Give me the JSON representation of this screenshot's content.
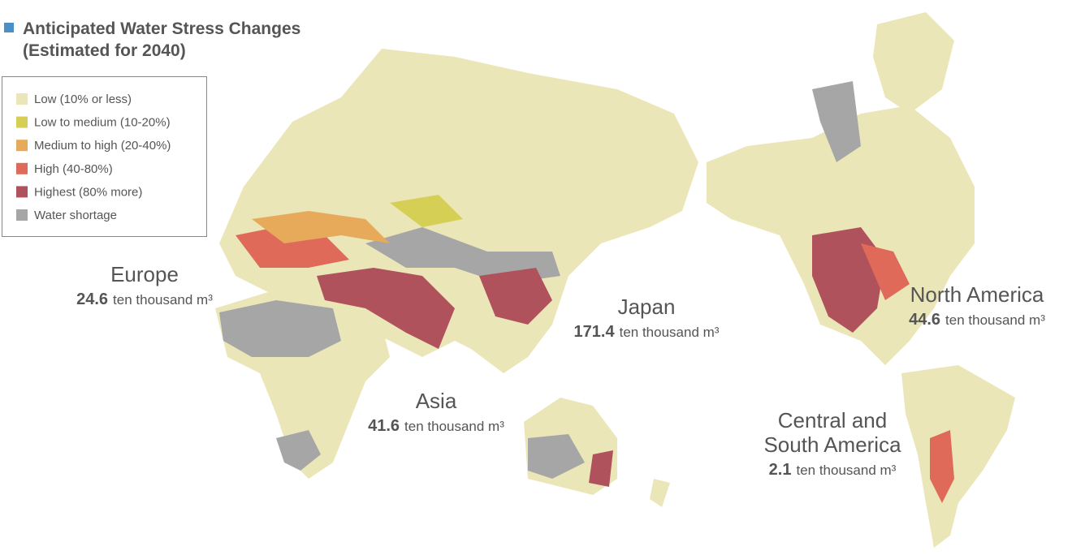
{
  "title": [
    "Anticipated Water Stress Changes",
    "(Estimated for 2040)"
  ],
  "legend": [
    {
      "label": "Low (10% or less)",
      "color": "#ebe6b8"
    },
    {
      "label": "Low to medium (10-20%)",
      "color": "#d6cf55"
    },
    {
      "label": "Medium to high (20-40%)",
      "color": "#e7a95a"
    },
    {
      "label": "High (40-80%)",
      "color": "#e06a5a"
    },
    {
      "label": "Highest (80% more)",
      "color": "#b0525c"
    },
    {
      "label": "Water shortage",
      "color": "#a6a6a6"
    }
  ],
  "regions": [
    {
      "name": [
        "Europe"
      ],
      "value": 24.6,
      "unit": "ten thousand m³"
    },
    {
      "name": [
        "Japan"
      ],
      "value": 171.4,
      "unit": "ten thousand m³"
    },
    {
      "name": [
        "North America"
      ],
      "value": 44.6,
      "unit": "ten thousand m³"
    },
    {
      "name": [
        "Asia"
      ],
      "value": 41.6,
      "unit": "ten thousand m³"
    },
    {
      "name": [
        "Central and",
        "South America"
      ],
      "value": 2.1,
      "unit": "ten thousand m³"
    }
  ]
}
